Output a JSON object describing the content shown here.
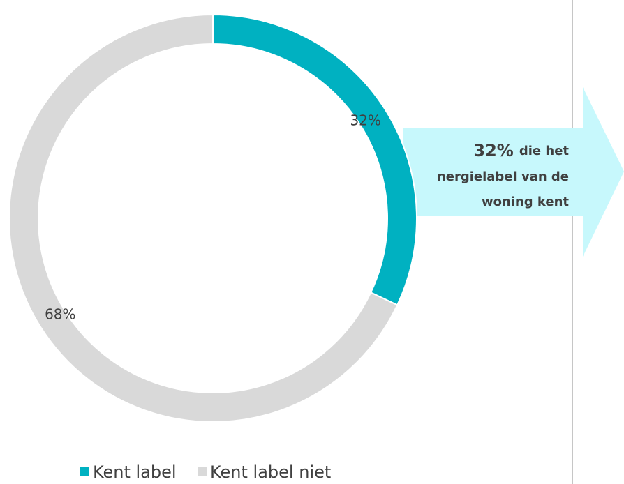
{
  "chart_data": {
    "type": "donut",
    "categories": [
      "Kent label",
      "Kent label niet"
    ],
    "values": [
      32,
      68
    ],
    "value_labels": [
      "32%",
      "68%"
    ],
    "colors": [
      "#00B1C1",
      "#D9D9D9"
    ],
    "legend": "bottom",
    "annotation": {
      "highlight": "32%",
      "lines": [
        "die het",
        "nergielabel van de",
        "woning kent"
      ]
    }
  }
}
